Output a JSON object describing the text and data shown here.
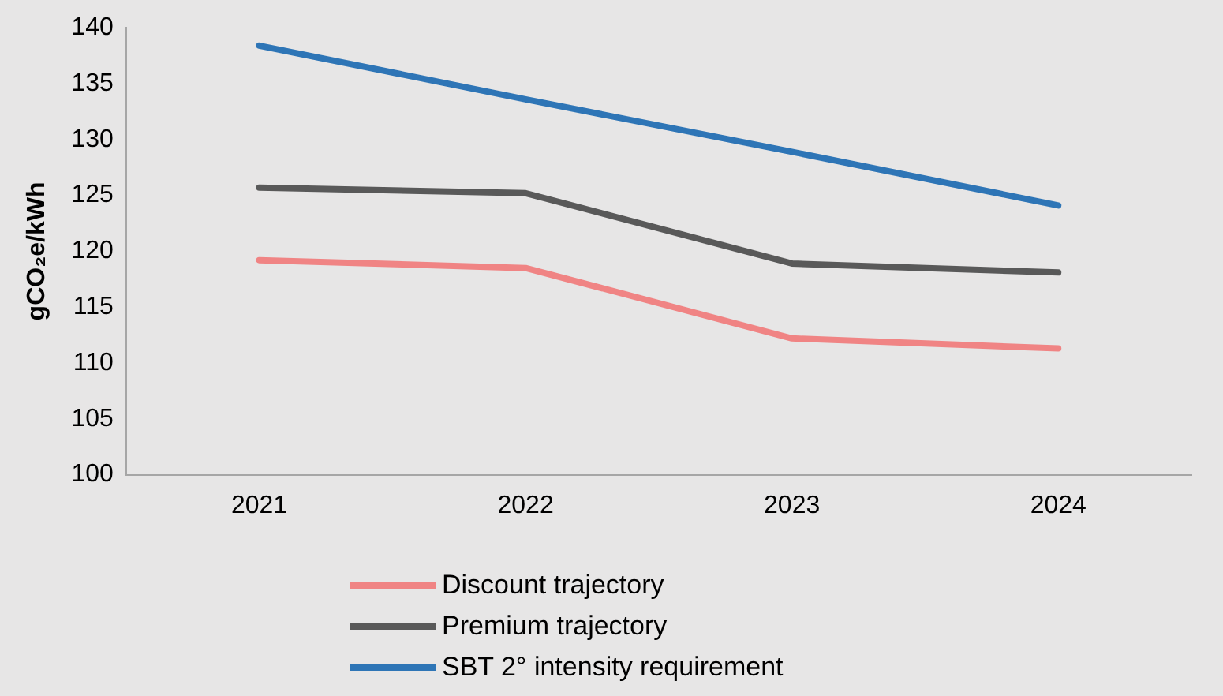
{
  "chart_data": {
    "type": "line",
    "ylabel": "gCO₂e/kWh",
    "categories": [
      "2021",
      "2022",
      "2023",
      "2024"
    ],
    "series": [
      {
        "name": "Discount trajectory",
        "color": "#f08484",
        "values": [
          119.2,
          118.5,
          112.2,
          111.3
        ]
      },
      {
        "name": "Premium trajectory",
        "color": "#595959",
        "values": [
          125.7,
          125.2,
          118.9,
          118.1
        ]
      },
      {
        "name": "SBT 2° intensity requirement",
        "color": "#2e75b6",
        "values": [
          138.4,
          133.6,
          128.9,
          124.1
        ]
      }
    ],
    "ylim": [
      100,
      140
    ],
    "yticks": [
      100,
      105,
      110,
      115,
      120,
      125,
      130,
      135,
      140
    ],
    "grid": false,
    "legend": "bottom",
    "marker": "none",
    "line_style": "solid"
  }
}
